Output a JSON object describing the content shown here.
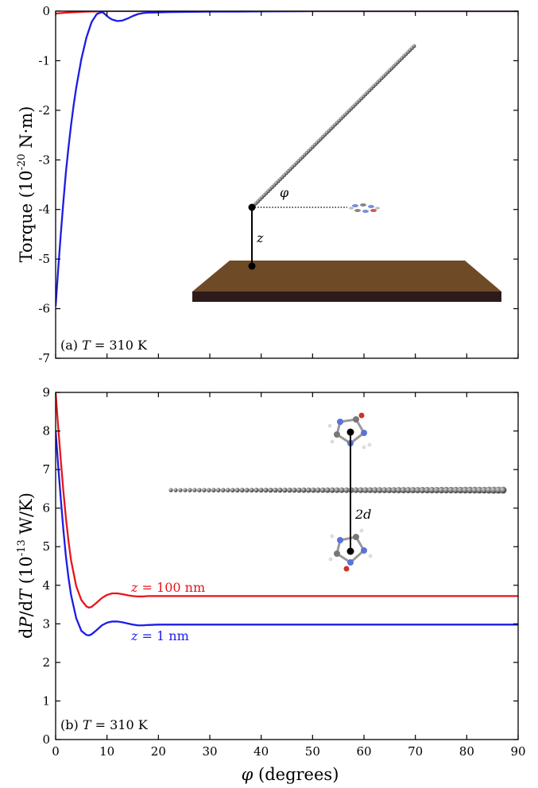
{
  "figure": {
    "xlabel_symbol": "φ",
    "xlabel_unit": "(degrees)"
  },
  "colors": {
    "red": "#e8141c",
    "blue": "#1c1ce6",
    "slab_top": "#6f4a26",
    "slab_side": "#2d1a1a",
    "atom_gray": "#6e6e6e"
  },
  "chart_data": [
    {
      "type": "line",
      "panel_label": "(a) T = 310 K",
      "panel_label_parts": {
        "tag": "(a)",
        "var": "T",
        "eq": " = 310 K"
      },
      "ylabel": "Torque (10^-20 N·m)",
      "ylabel_parts": {
        "main": "Torque (10",
        "exp": "-20",
        "unit": " N·m)"
      },
      "xlim": [
        0,
        90
      ],
      "ylim": [
        -7,
        0
      ],
      "xticks": [
        0,
        10,
        20,
        30,
        40,
        50,
        60,
        70,
        80,
        90
      ],
      "yticks": [
        0,
        -1,
        -2,
        -3,
        -4,
        -5,
        -6,
        -7
      ],
      "ytick_labels": [
        "0",
        "-1",
        "-2",
        "-3",
        "-4",
        "-5",
        "-6",
        "-7"
      ],
      "grid": false,
      "series": [
        {
          "color": "red",
          "x": [
            0,
            1,
            2,
            3,
            4,
            5,
            6,
            8,
            10,
            15,
            20,
            30,
            45,
            90
          ],
          "y": [
            -0.05,
            -0.04,
            -0.03,
            -0.025,
            -0.02,
            -0.015,
            -0.01,
            -0.005,
            0,
            0,
            0,
            0,
            0,
            0
          ]
        },
        {
          "color": "blue",
          "x": [
            0,
            0.5,
            1,
            1.5,
            2,
            2.5,
            3,
            3.5,
            4,
            5,
            6,
            7,
            8,
            9,
            9.5,
            10,
            10.5,
            11,
            12,
            13,
            14,
            15,
            16,
            17,
            18,
            19,
            20,
            22,
            25,
            30,
            35,
            40,
            50,
            60,
            70,
            80,
            90
          ],
          "y": [
            -5.95,
            -5.2,
            -4.5,
            -3.85,
            -3.25,
            -2.75,
            -2.3,
            -1.9,
            -1.55,
            -0.97,
            -0.53,
            -0.22,
            -0.06,
            -0.02,
            -0.05,
            -0.1,
            -0.14,
            -0.17,
            -0.2,
            -0.19,
            -0.15,
            -0.1,
            -0.06,
            -0.04,
            -0.03,
            -0.03,
            -0.025,
            -0.02,
            -0.015,
            -0.01,
            -0.01,
            -0.005,
            0,
            0,
            0,
            0,
            0
          ]
        }
      ],
      "inset": {
        "angle_label": "φ",
        "height_label": "z"
      }
    },
    {
      "type": "line",
      "panel_label": "(b) T = 310 K",
      "panel_label_parts": {
        "tag": "(b)",
        "var": "T",
        "eq": " = 310 K"
      },
      "ylabel": "dP/dT (10^-13 W/K)",
      "ylabel_parts": {
        "d1": "d",
        "P": "P",
        "slash": "/d",
        "T": "T",
        "paren": " (10",
        "exp": "-13",
        "unit": " W/K)"
      },
      "xlabel": "φ (degrees)",
      "xlim": [
        0,
        90
      ],
      "ylim": [
        0,
        9
      ],
      "xticks": [
        0,
        10,
        20,
        30,
        40,
        50,
        60,
        70,
        80,
        90
      ],
      "xtick_labels": [
        "0",
        "10",
        "20",
        "30",
        "40",
        "50",
        "60",
        "70",
        "80",
        "90"
      ],
      "yticks": [
        0,
        1,
        2,
        3,
        4,
        5,
        6,
        7,
        8,
        9
      ],
      "ytick_labels": [
        "0",
        "1",
        "2",
        "3",
        "4",
        "5",
        "6",
        "7",
        "8",
        "9"
      ],
      "grid": false,
      "series": [
        {
          "name": "z = 100 nm",
          "name_parts": {
            "var": "z",
            "rest": " = 100 nm"
          },
          "color": "red",
          "x": [
            0,
            0.5,
            1,
            1.5,
            2,
            2.5,
            3,
            4,
            5,
            6,
            6.5,
            7,
            8,
            9,
            10,
            11,
            12,
            13,
            14,
            15,
            16,
            17,
            18,
            20,
            22,
            25,
            30,
            40,
            50,
            60,
            70,
            80,
            90
          ],
          "y": [
            9.0,
            8.1,
            7.25,
            6.45,
            5.75,
            5.15,
            4.65,
            3.98,
            3.62,
            3.45,
            3.42,
            3.44,
            3.55,
            3.67,
            3.75,
            3.79,
            3.79,
            3.77,
            3.74,
            3.72,
            3.71,
            3.71,
            3.72,
            3.72,
            3.72,
            3.72,
            3.72,
            3.72,
            3.72,
            3.72,
            3.72,
            3.72,
            3.72
          ]
        },
        {
          "name": "z = 1 nm",
          "name_parts": {
            "var": "z",
            "rest": " = 1 nm"
          },
          "color": "blue",
          "x": [
            0,
            0.5,
            1,
            1.5,
            2,
            2.5,
            3,
            4,
            5,
            6,
            6.5,
            7,
            8,
            9,
            10,
            11,
            12,
            13,
            14,
            15,
            16,
            17,
            18,
            20,
            22,
            25,
            30,
            40,
            50,
            60,
            70,
            80,
            90
          ],
          "y": [
            8.0,
            7.1,
            6.25,
            5.45,
            4.75,
            4.2,
            3.75,
            3.15,
            2.82,
            2.71,
            2.7,
            2.73,
            2.84,
            2.96,
            3.03,
            3.06,
            3.06,
            3.04,
            3.01,
            2.98,
            2.96,
            2.96,
            2.97,
            2.98,
            2.98,
            2.98,
            2.98,
            2.98,
            2.98,
            2.98,
            2.98,
            2.98,
            2.98
          ]
        }
      ],
      "inset": {
        "distance_label": "2d"
      }
    }
  ]
}
